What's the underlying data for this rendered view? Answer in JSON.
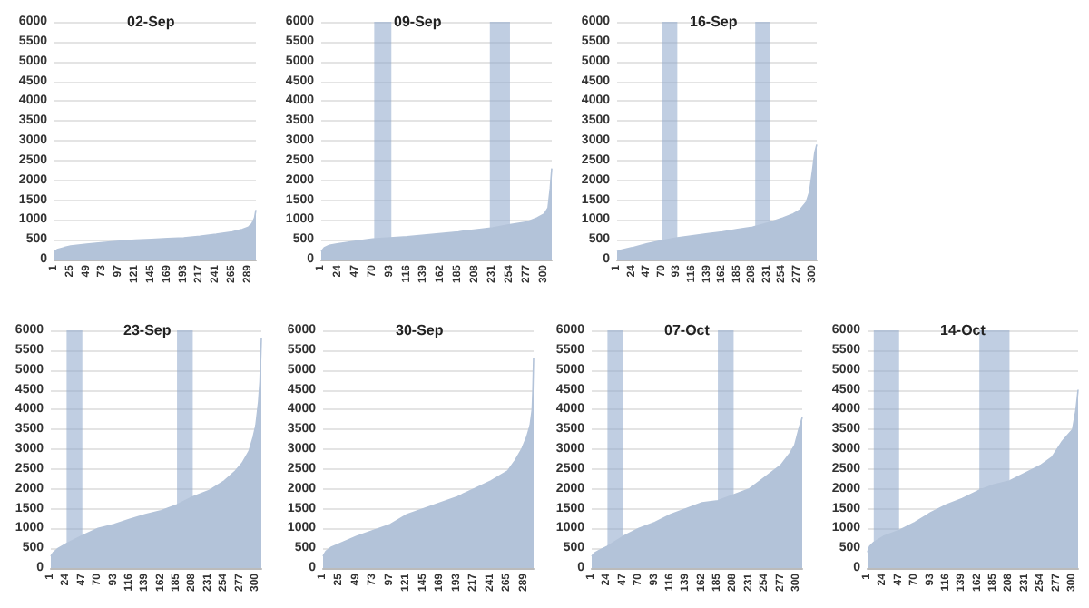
{
  "chart_data": [
    {
      "type": "area",
      "title": "02-Sep",
      "color": "#b3c3d9",
      "x": [
        1,
        5,
        15,
        25,
        49,
        73,
        97,
        121,
        145,
        169,
        193,
        217,
        241,
        265,
        280,
        289,
        294,
        298,
        300
      ],
      "values": [
        200,
        250,
        300,
        340,
        390,
        430,
        460,
        490,
        510,
        530,
        550,
        590,
        640,
        700,
        760,
        820,
        900,
        1050,
        1250
      ],
      "xlim": [
        1,
        300
      ],
      "xticks": [
        1,
        25,
        49,
        73,
        97,
        121,
        145,
        169,
        193,
        217,
        241,
        265,
        289
      ],
      "ylim": [
        0,
        6000
      ],
      "yticks": [
        0,
        500,
        1000,
        1500,
        2000,
        2500,
        3000,
        3500,
        4000,
        4500,
        5000,
        5500,
        6000
      ],
      "grid": "y",
      "marker": "none"
    },
    {
      "type": "area",
      "title": "09-Sep",
      "color": "#b3c3d9",
      "x": [
        1,
        5,
        12,
        24,
        47,
        70,
        93,
        116,
        139,
        162,
        185,
        208,
        231,
        254,
        277,
        290,
        300,
        305,
        308,
        310
      ],
      "values": [
        200,
        300,
        360,
        400,
        460,
        520,
        550,
        580,
        620,
        660,
        700,
        750,
        800,
        880,
        950,
        1050,
        1150,
        1300,
        1800,
        2300
      ],
      "xlim": [
        1,
        310
      ],
      "xticks": [
        1,
        24,
        47,
        70,
        93,
        116,
        139,
        162,
        185,
        208,
        231,
        254,
        277,
        300
      ],
      "ylim": [
        0,
        6000
      ],
      "yticks": [
        0,
        500,
        1000,
        1500,
        2000,
        2500,
        3000,
        3500,
        4000,
        4500,
        5000,
        5500,
        6000
      ],
      "grid": "y",
      "marker": "none",
      "bands": [
        {
          "axis": "x",
          "from": 72,
          "to": 95,
          "color": "#8da6cb"
        },
        {
          "axis": "x",
          "from": 227,
          "to": 254,
          "color": "#8da6cb"
        }
      ]
    },
    {
      "type": "area",
      "title": "16-Sep",
      "color": "#b3c3d9",
      "x": [
        1,
        5,
        24,
        47,
        70,
        93,
        116,
        139,
        162,
        185,
        208,
        231,
        254,
        270,
        280,
        290,
        295,
        300,
        303,
        306
      ],
      "values": [
        200,
        230,
        300,
        400,
        480,
        550,
        600,
        650,
        700,
        760,
        820,
        920,
        1050,
        1150,
        1250,
        1450,
        1700,
        2300,
        2700,
        2900
      ],
      "xlim": [
        1,
        306
      ],
      "xticks": [
        1,
        24,
        47,
        70,
        93,
        116,
        139,
        162,
        185,
        208,
        231,
        254,
        277,
        300
      ],
      "ylim": [
        0,
        6000
      ],
      "yticks": [
        0,
        500,
        1000,
        1500,
        2000,
        2500,
        3000,
        3500,
        4000,
        4500,
        5000,
        5500,
        6000
      ],
      "grid": "y",
      "marker": "none",
      "bands": [
        {
          "axis": "x",
          "from": 70,
          "to": 93,
          "color": "#8da6cb"
        },
        {
          "axis": "x",
          "from": 212,
          "to": 235,
          "color": "#8da6cb"
        }
      ]
    },
    {
      "type": "area",
      "title": "23-Sep",
      "color": "#b3c3d9",
      "x": [
        1,
        5,
        12,
        24,
        47,
        70,
        93,
        116,
        139,
        162,
        185,
        208,
        231,
        254,
        270,
        280,
        290,
        296,
        300,
        304,
        306,
        308
      ],
      "values": [
        300,
        400,
        500,
        620,
        820,
        1000,
        1100,
        1230,
        1350,
        1450,
        1600,
        1800,
        1950,
        2200,
        2450,
        2650,
        2950,
        3300,
        3600,
        4200,
        4700,
        5800
      ],
      "xlim": [
        1,
        308
      ],
      "xticks": [
        1,
        24,
        47,
        70,
        93,
        116,
        139,
        162,
        185,
        208,
        231,
        254,
        277,
        300
      ],
      "ylim": [
        0,
        6000
      ],
      "yticks": [
        0,
        500,
        1000,
        1500,
        2000,
        2500,
        3000,
        3500,
        4000,
        4500,
        5000,
        5500,
        6000
      ],
      "grid": "y",
      "marker": "none",
      "bands": [
        {
          "axis": "x",
          "from": 24,
          "to": 47,
          "color": "#8da6cb"
        },
        {
          "axis": "x",
          "from": 185,
          "to": 208,
          "color": "#8da6cb"
        }
      ]
    },
    {
      "type": "area",
      "title": "30-Sep",
      "color": "#b3c3d9",
      "x": [
        1,
        5,
        12,
        25,
        49,
        73,
        97,
        121,
        145,
        169,
        193,
        217,
        241,
        265,
        275,
        285,
        292,
        297,
        300,
        301,
        302
      ],
      "values": [
        300,
        420,
        520,
        620,
        800,
        950,
        1100,
        1350,
        1500,
        1650,
        1800,
        2000,
        2200,
        2450,
        2700,
        3000,
        3300,
        3600,
        4000,
        4500,
        5300
      ],
      "xlim": [
        1,
        302
      ],
      "xticks": [
        1,
        25,
        49,
        73,
        97,
        121,
        145,
        169,
        193,
        217,
        241,
        265,
        289
      ],
      "ylim": [
        0,
        6000
      ],
      "yticks": [
        0,
        500,
        1000,
        1500,
        2000,
        2500,
        3000,
        3500,
        4000,
        4500,
        5000,
        5500,
        6000
      ],
      "grid": "y",
      "marker": "none"
    },
    {
      "type": "area",
      "title": "07-Oct",
      "color": "#b3c3d9",
      "x": [
        1,
        5,
        12,
        24,
        47,
        70,
        93,
        116,
        139,
        162,
        185,
        208,
        231,
        254,
        277,
        290,
        297,
        303,
        308
      ],
      "values": [
        300,
        380,
        450,
        550,
        800,
        1000,
        1150,
        1350,
        1500,
        1650,
        1700,
        1850,
        2000,
        2300,
        2600,
        2900,
        3100,
        3500,
        3800
      ],
      "xlim": [
        1,
        308
      ],
      "xticks": [
        1,
        24,
        47,
        70,
        93,
        116,
        139,
        162,
        185,
        208,
        231,
        254,
        277,
        300
      ],
      "ylim": [
        0,
        6000
      ],
      "yticks": [
        0,
        500,
        1000,
        1500,
        2000,
        2500,
        3000,
        3500,
        4000,
        4500,
        5000,
        5500,
        6000
      ],
      "grid": "y",
      "marker": "none",
      "bands": [
        {
          "axis": "x",
          "from": 24,
          "to": 47,
          "color": "#8da6cb"
        },
        {
          "axis": "x",
          "from": 185,
          "to": 208,
          "color": "#8da6cb"
        }
      ]
    },
    {
      "type": "area",
      "title": "14-Oct",
      "color": "#b3c3d9",
      "x": [
        1,
        4,
        10,
        24,
        47,
        70,
        93,
        116,
        139,
        162,
        185,
        208,
        231,
        254,
        270,
        285,
        295,
        300,
        305,
        308
      ],
      "values": [
        400,
        550,
        650,
        800,
        950,
        1150,
        1400,
        1600,
        1750,
        1950,
        2100,
        2200,
        2400,
        2600,
        2800,
        3200,
        3400,
        3500,
        4000,
        4500
      ],
      "xlim": [
        1,
        308
      ],
      "xticks": [
        1,
        24,
        47,
        70,
        93,
        116,
        139,
        162,
        185,
        208,
        231,
        254,
        277,
        300
      ],
      "ylim": [
        0,
        6000
      ],
      "yticks": [
        0,
        500,
        1000,
        1500,
        2000,
        2500,
        3000,
        3500,
        4000,
        4500,
        5000,
        5500,
        6000
      ],
      "grid": "y",
      "marker": "none",
      "bands": [
        {
          "axis": "x",
          "from": 10,
          "to": 47,
          "color": "#8da6cb"
        },
        {
          "axis": "x",
          "from": 164,
          "to": 208,
          "color": "#8da6cb"
        }
      ]
    }
  ]
}
